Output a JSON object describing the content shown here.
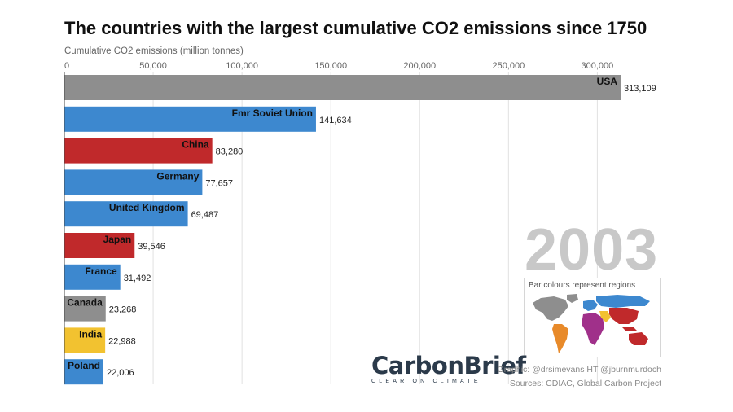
{
  "chart_data": {
    "type": "bar",
    "orientation": "horizontal",
    "title": "The countries with the largest cumulative CO2 emissions since 1750",
    "xlabel": "Cumulative CO2 emissions (million tonnes)",
    "xlim": [
      0,
      313109
    ],
    "x_ticks": [
      0,
      50000,
      100000,
      150000,
      200000,
      250000,
      300000
    ],
    "x_tick_labels": [
      "0",
      "50,000",
      "100,000",
      "150,000",
      "200,000",
      "250,000",
      "300,000"
    ],
    "grid": "vertical",
    "categories": [
      "USA",
      "Fmr Soviet Union",
      "China",
      "Germany",
      "United Kingdom",
      "Japan",
      "France",
      "Canada",
      "India",
      "Poland"
    ],
    "values": [
      313109,
      141634,
      83280,
      77657,
      69487,
      39546,
      31492,
      23268,
      22988,
      22006
    ],
    "value_labels": [
      "313,109",
      "141,634",
      "83,280",
      "77,657",
      "69,487",
      "39,546",
      "31,492",
      "23,268",
      "22,988",
      "22,006"
    ],
    "colors": [
      "#8e8e8e",
      "#3d88cf",
      "#c0292b",
      "#3d88cf",
      "#3d88cf",
      "#c0292b",
      "#3d88cf",
      "#8e8e8e",
      "#f2c230",
      "#3d88cf"
    ],
    "year": "2003"
  },
  "legend": {
    "title": "Bar colours represent regions",
    "region_colors": {
      "north_america": "#8e8e8e",
      "europe": "#3d88cf",
      "south_america": "#e88a2a",
      "africa": "#a0308a",
      "middle_east": "#f2c230",
      "asia": "#c0292b",
      "russia": "#3d88cf",
      "oceania": "#c0292b"
    }
  },
  "logo": {
    "carbon": "Carbon",
    "brief": "Brief",
    "tagline": "CLEAR ON CLIMATE"
  },
  "credits": {
    "graphic": "Graphic: @drsimevans HT @jburnmurdoch",
    "sources": "Sources: CDIAC, Global Carbon Project"
  }
}
